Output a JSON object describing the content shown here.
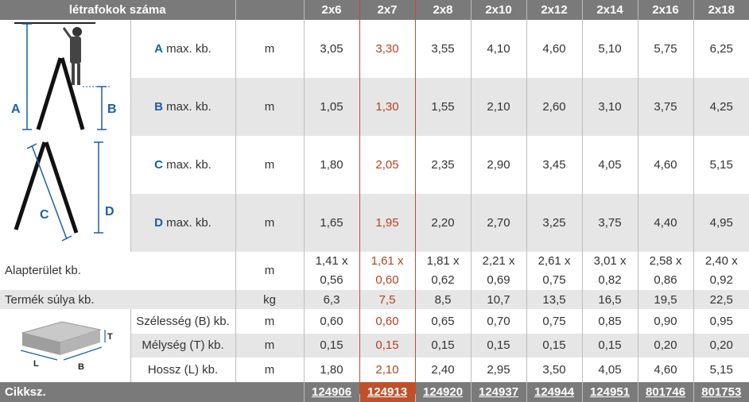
{
  "header": {
    "title": "létrafokok száma",
    "columns": [
      "2x6",
      "2x7",
      "2x8",
      "2x10",
      "2x12",
      "2x14",
      "2x16",
      "2x18"
    ]
  },
  "rows": [
    {
      "letter": "A",
      "label": " max. kb.",
      "unit": "m",
      "values": [
        "3,05",
        "3,30",
        "3,55",
        "4,10",
        "4,60",
        "5,10",
        "5,75",
        "6,25"
      ]
    },
    {
      "letter": "B",
      "label": " max. kb.",
      "unit": "m",
      "values": [
        "1,05",
        "1,30",
        "1,55",
        "2,10",
        "2,60",
        "3,10",
        "3,75",
        "4,25"
      ]
    },
    {
      "letter": "C",
      "label": " max. kb.",
      "unit": "m",
      "values": [
        "1,80",
        "2,05",
        "2,35",
        "2,90",
        "3,45",
        "4,05",
        "4,60",
        "5,15"
      ]
    },
    {
      "letter": "D",
      "label": " max. kb.",
      "unit": "m",
      "values": [
        "1,65",
        "1,95",
        "2,20",
        "2,70",
        "3,25",
        "3,75",
        "4,40",
        "4,95"
      ]
    }
  ],
  "footprint": {
    "label": "Alapterület kb.",
    "unit": "m",
    "values_top": [
      "1,41 x",
      "1,61 x",
      "1,81 x",
      "2,21 x",
      "2,61 x",
      "3,01 x",
      "2,58 x",
      "2,40 x"
    ],
    "values_bottom": [
      "0,56",
      "0,60",
      "0,62",
      "0,69",
      "0,75",
      "0,82",
      "0,86",
      "0,92"
    ]
  },
  "weight": {
    "label": "Termék súlya kb.",
    "unit": "kg",
    "values": [
      "6,3",
      "7,5",
      "8,5",
      "10,7",
      "13,5",
      "16,5",
      "19,5",
      "22,5"
    ]
  },
  "package": [
    {
      "label": "Szélesség (B) kb.",
      "unit": "m",
      "values": [
        "0,60",
        "0,60",
        "0,65",
        "0,70",
        "0,75",
        "0,85",
        "0,90",
        "0,95"
      ]
    },
    {
      "label": "Mélység (T) kb.",
      "unit": "m",
      "values": [
        "0,15",
        "0,15",
        "0,15",
        "0,15",
        "0,15",
        "0,15",
        "0,20",
        "0,20"
      ]
    },
    {
      "label": "Hossz (L) kb.",
      "unit": "m",
      "values": [
        "1,80",
        "2,10",
        "2,40",
        "2,95",
        "3,50",
        "4,05",
        "4,60",
        "5,15"
      ]
    }
  ],
  "footer": {
    "label": "Cikksz.",
    "codes": [
      "124906",
      "124913",
      "124920",
      "124937",
      "124944",
      "124951",
      "801746",
      "801753"
    ]
  },
  "diagram": {
    "ladder_letters": [
      "A",
      "B",
      "C",
      "D"
    ],
    "box_letters": [
      "T",
      "L",
      "B"
    ]
  },
  "colors": {
    "header": "#7a7a7a",
    "highlight": "#b7411e",
    "letter": "#1a5ea8",
    "shade": "#e6e6e6"
  }
}
